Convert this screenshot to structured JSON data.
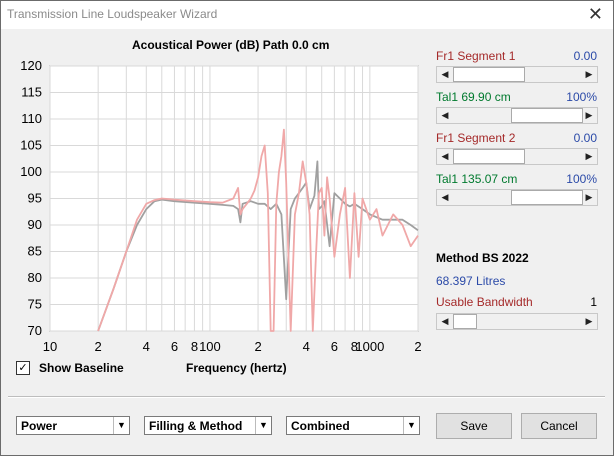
{
  "window": {
    "title": "Transmission Line Loudspeaker Wizard",
    "close_glyph": "✕"
  },
  "chart": {
    "title": "Acoustical Power (dB)   Path 0.0 cm",
    "xlabel": "Frequency (hertz)"
  },
  "controls": {
    "segment1_label": "Fr1  Segment 1",
    "segment1_value": "0.00",
    "taper1_label": "Tal1  69.90 cm",
    "taper1_value": "100%",
    "segment2_label": "Fr1  Segment 2",
    "segment2_value": "0.00",
    "taper2_label": "Tal1  135.07 cm",
    "taper2_value": "100%",
    "method_label": "Method BS  2022",
    "volume_label": "68.397 Litres",
    "bandwidth_label": "Usable Bandwidth",
    "bandwidth_value": "1",
    "show_baseline_label": "Show Baseline",
    "checkbox_glyph": "✓",
    "slider_levels": {
      "segment1": 0.0,
      "taper1": 1.0,
      "segment2": 0.0,
      "taper2": 1.0,
      "bandwidth": 0.1
    }
  },
  "bottom": {
    "select_power": "Power",
    "select_filling": "Filling & Method",
    "select_combined": "Combined",
    "save_label": "Save",
    "cancel_label": "Cancel",
    "dropdown_glyph": "▼"
  },
  "colors": {
    "baseline": "#a0a0a0",
    "response": "#f0a8a8",
    "plot_bg": "#ffffff",
    "grid": "#d9d9d9"
  },
  "chart_data": {
    "type": "line",
    "title": "Acoustical Power (dB)   Path 0.0 cm",
    "xlabel": "Frequency (hertz)",
    "ylabel": "",
    "x_scale": "log",
    "xlim": [
      10,
      2000
    ],
    "ylim": [
      70,
      120
    ],
    "yticks": [
      70,
      75,
      80,
      85,
      90,
      95,
      100,
      105,
      110,
      115,
      120
    ],
    "xtick_labels": [
      {
        "x": 10,
        "label": "10"
      },
      {
        "x": 20,
        "label": "2"
      },
      {
        "x": 40,
        "label": "4"
      },
      {
        "x": 60,
        "label": "6"
      },
      {
        "x": 80,
        "label": "8"
      },
      {
        "x": 100,
        "label": "100"
      },
      {
        "x": 200,
        "label": "2"
      },
      {
        "x": 400,
        "label": "4"
      },
      {
        "x": 600,
        "label": "6"
      },
      {
        "x": 800,
        "label": "8"
      },
      {
        "x": 1000,
        "label": "1000"
      },
      {
        "x": 2000,
        "label": "2"
      }
    ],
    "grid": true,
    "series": [
      {
        "name": "",
        "x": [
          20,
          25,
          30,
          35,
          40,
          45,
          50,
          60,
          80,
          100,
          120,
          140,
          150,
          155,
          160,
          180,
          200,
          220,
          240,
          260,
          280,
          300,
          320,
          340,
          380,
          400,
          420,
          450,
          470,
          480,
          500,
          520,
          560,
          600,
          650,
          700,
          750,
          800,
          900,
          1000,
          1200,
          1400,
          1600,
          1800,
          2000
        ],
        "y": [
          70,
          78,
          85,
          90,
          93,
          94.5,
          94.8,
          94.5,
          94.2,
          94,
          93.8,
          93.6,
          93,
          90.5,
          94,
          94.5,
          94,
          94,
          93,
          94,
          92,
          76,
          93,
          95,
          97,
          98,
          93,
          95.5,
          102,
          93,
          93.5,
          94.5,
          86,
          96,
          95,
          94,
          93.5,
          94,
          93,
          92,
          91,
          91,
          91,
          90,
          89
        ]
      },
      {
        "name": "",
        "x": [
          20,
          25,
          30,
          35,
          40,
          45,
          50,
          60,
          80,
          100,
          120,
          140,
          150,
          155,
          160,
          170,
          180,
          190,
          200,
          210,
          220,
          230,
          240,
          250,
          260,
          270,
          280,
          290,
          300,
          320,
          340,
          360,
          380,
          400,
          420,
          440,
          460,
          480,
          500,
          520,
          540,
          560,
          600,
          650,
          700,
          750,
          800,
          850,
          900,
          1000,
          1100,
          1200,
          1400,
          1600,
          1800,
          2000
        ],
        "y": [
          70,
          78,
          85,
          91,
          94,
          94.7,
          95,
          94.8,
          94.5,
          94.3,
          94.2,
          95,
          97,
          92,
          93,
          94,
          95,
          96.5,
          99,
          103,
          105,
          96,
          70,
          70,
          94,
          100,
          103,
          108,
          98,
          70,
          92,
          96,
          102,
          98,
          92,
          70,
          84,
          96,
          97,
          88,
          99,
          95,
          84,
          92,
          97,
          80,
          96,
          84,
          95,
          91,
          93,
          88,
          92,
          90,
          86,
          88
        ]
      }
    ]
  }
}
